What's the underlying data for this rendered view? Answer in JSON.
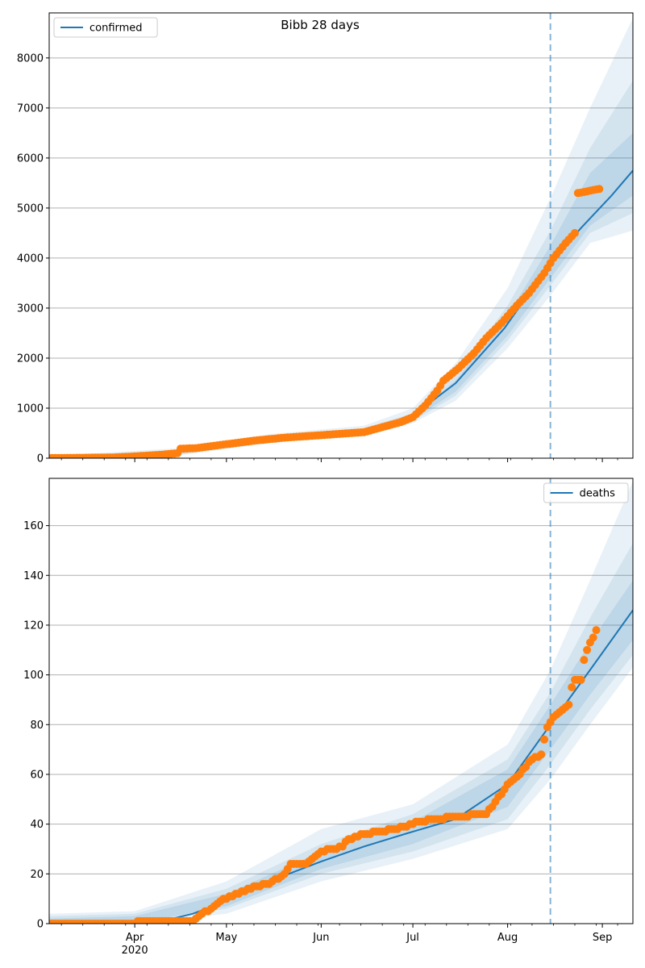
{
  "chart_data": [
    {
      "type": "line",
      "title": "Bibb 28 days",
      "legend": "top-left",
      "grid": "horizontal",
      "ylim": [
        0,
        8900
      ],
      "yticks": [
        0,
        1000,
        2000,
        3000,
        4000,
        5000,
        6000,
        7000,
        8000
      ],
      "x_range": [
        "2020-03-04",
        "2020-09-11"
      ],
      "forecast_start": "2020-08-15",
      "series": [
        {
          "name": "confirmed",
          "type": "line",
          "color": "#1f77b4",
          "points": [
            [
              "2020-03-04",
              0
            ],
            [
              "2020-03-20",
              8
            ],
            [
              "2020-04-01",
              40
            ],
            [
              "2020-04-10",
              80
            ],
            [
              "2020-04-20",
              180
            ],
            [
              "2020-05-01",
              280
            ],
            [
              "2020-05-15",
              380
            ],
            [
              "2020-06-01",
              470
            ],
            [
              "2020-06-15",
              540
            ],
            [
              "2020-06-27",
              700
            ],
            [
              "2020-07-01",
              850
            ],
            [
              "2020-07-15",
              1500
            ],
            [
              "2020-07-31",
              2600
            ],
            [
              "2020-08-15",
              3900
            ],
            [
              "2020-08-25",
              4600
            ],
            [
              "2020-09-04",
              5250
            ],
            [
              "2020-09-11",
              5750
            ]
          ]
        },
        {
          "name": "",
          "type": "scatter",
          "color": "#ff7f0e",
          "points": [
            [
              "2020-03-04",
              2
            ],
            [
              "2020-03-25",
              15
            ],
            [
              "2020-04-01",
              35
            ],
            [
              "2020-04-10",
              70
            ],
            [
              "2020-04-15",
              100
            ],
            [
              "2020-04-16",
              190
            ],
            [
              "2020-04-21",
              200
            ],
            [
              "2020-05-01",
              280
            ],
            [
              "2020-05-10",
              350
            ],
            [
              "2020-05-20",
              410
            ],
            [
              "2020-06-01",
              460
            ],
            [
              "2020-06-15",
              520
            ],
            [
              "2020-06-27",
              720
            ],
            [
              "2020-07-01",
              820
            ],
            [
              "2020-07-05",
              1050
            ],
            [
              "2020-07-09",
              1350
            ],
            [
              "2020-07-11",
              1550
            ],
            [
              "2020-07-16",
              1800
            ],
            [
              "2020-07-21",
              2100
            ],
            [
              "2020-07-25",
              2400
            ],
            [
              "2020-07-30",
              2700
            ],
            [
              "2020-08-04",
              3050
            ],
            [
              "2020-08-08",
              3300
            ],
            [
              "2020-08-13",
              3700
            ],
            [
              "2020-08-16",
              4000
            ],
            [
              "2020-08-18",
              4150
            ],
            [
              "2020-08-20",
              4300
            ],
            [
              "2020-08-23",
              4500
            ],
            [
              "2020-08-24",
              5300
            ],
            [
              "2020-08-26",
              5320
            ],
            [
              "2020-08-29",
              5360
            ],
            [
              "2020-08-31",
              5380
            ]
          ]
        }
      ],
      "bands": {
        "dates": [
          "2020-03-04",
          "2020-04-15",
          "2020-05-15",
          "2020-06-15",
          "2020-07-01",
          "2020-07-15",
          "2020-08-01",
          "2020-08-15",
          "2020-08-28",
          "2020-09-11"
        ],
        "outer_low": [
          0,
          50,
          300,
          470,
          700,
          1150,
          2200,
          3250,
          4300,
          4550
        ],
        "outer_high": [
          40,
          200,
          480,
          650,
          1000,
          1900,
          3400,
          5200,
          7000,
          8800
        ],
        "mid_low": [
          0,
          70,
          330,
          500,
          740,
          1250,
          2350,
          3450,
          4500,
          4900
        ],
        "mid_high": [
          25,
          170,
          430,
          600,
          900,
          1650,
          3050,
          4550,
          6200,
          7550
        ],
        "inner_low": [
          0,
          80,
          350,
          510,
          770,
          1330,
          2450,
          3600,
          4650,
          5250
        ],
        "inner_high": [
          15,
          150,
          410,
          580,
          850,
          1550,
          2850,
          4250,
          5700,
          6500
        ]
      }
    },
    {
      "type": "line",
      "legend": "top-right",
      "grid": "horizontal",
      "ylim": [
        0,
        179
      ],
      "yticks": [
        0,
        20,
        40,
        60,
        80,
        100,
        120,
        140,
        160
      ],
      "x_range": [
        "2020-03-04",
        "2020-09-11"
      ],
      "xticks": [
        "Apr\n2020",
        "May",
        "Jun",
        "Jul",
        "Aug",
        "Sep"
      ],
      "forecast_start": "2020-08-15",
      "series": [
        {
          "name": "deaths",
          "type": "line",
          "color": "#1f77b4",
          "points": [
            [
              "2020-03-04",
              0
            ],
            [
              "2020-03-25",
              0
            ],
            [
              "2020-04-10",
              1
            ],
            [
              "2020-04-20",
              4
            ],
            [
              "2020-05-01",
              9
            ],
            [
              "2020-05-15",
              17
            ],
            [
              "2020-06-01",
              25
            ],
            [
              "2020-06-15",
              31
            ],
            [
              "2020-07-01",
              37
            ],
            [
              "2020-07-15",
              42
            ],
            [
              "2020-08-01",
              56
            ],
            [
              "2020-08-15",
              80
            ],
            [
              "2020-08-28",
              102
            ],
            [
              "2020-09-11",
              126
            ]
          ]
        },
        {
          "name": "",
          "type": "scatter",
          "color": "#ff7f0e",
          "points": [
            [
              "2020-03-04",
              0
            ],
            [
              "2020-03-30",
              0
            ],
            [
              "2020-04-05",
              1
            ],
            [
              "2020-04-20",
              1
            ],
            [
              "2020-04-22",
              3
            ],
            [
              "2020-04-26",
              6
            ],
            [
              "2020-04-30",
              10
            ],
            [
              "2020-05-05",
              12
            ],
            [
              "2020-05-10",
              15
            ],
            [
              "2020-05-15",
              16
            ],
            [
              "2020-05-20",
              20
            ],
            [
              "2020-05-22",
              24
            ],
            [
              "2020-05-27",
              24
            ],
            [
              "2020-06-01",
              29
            ],
            [
              "2020-06-05",
              30
            ],
            [
              "2020-06-08",
              31
            ],
            [
              "2020-06-10",
              34
            ],
            [
              "2020-06-15",
              36
            ],
            [
              "2020-06-20",
              37
            ],
            [
              "2020-06-25",
              38
            ],
            [
              "2020-07-01",
              40
            ],
            [
              "2020-07-03",
              41
            ],
            [
              "2020-07-15",
              43
            ],
            [
              "2020-07-25",
              44
            ],
            [
              "2020-07-27",
              47
            ],
            [
              "2020-08-01",
              56
            ],
            [
              "2020-08-05",
              60
            ],
            [
              "2020-08-08",
              65
            ],
            [
              "2020-08-12",
              68
            ],
            [
              "2020-08-14",
              79
            ],
            [
              "2020-08-16",
              83
            ],
            [
              "2020-08-18",
              85
            ],
            [
              "2020-08-21",
              88
            ],
            [
              "2020-08-22",
              95
            ],
            [
              "2020-08-23",
              98
            ],
            [
              "2020-08-25",
              98
            ],
            [
              "2020-08-26",
              106
            ],
            [
              "2020-08-27",
              110
            ],
            [
              "2020-08-28",
              113
            ],
            [
              "2020-08-29",
              115
            ],
            [
              "2020-08-30",
              118
            ]
          ]
        }
      ],
      "bands": {
        "dates": [
          "2020-03-04",
          "2020-04-01",
          "2020-05-01",
          "2020-06-01",
          "2020-07-01",
          "2020-08-01",
          "2020-08-15",
          "2020-08-28",
          "2020-09-11"
        ],
        "outer_low": [
          0,
          0,
          4,
          17,
          26,
          38,
          58,
          80,
          103
        ],
        "outer_high": [
          4,
          5,
          17,
          38,
          48,
          72,
          102,
          138,
          178
        ],
        "mid_low": [
          0,
          0,
          6,
          20,
          29,
          42,
          64,
          86,
          108
        ],
        "mid_high": [
          3,
          4,
          14,
          32,
          44,
          66,
          93,
          123,
          153
        ],
        "inner_low": [
          0,
          0,
          7,
          22,
          32,
          47,
          70,
          92,
          114
        ],
        "inner_high": [
          2,
          3,
          12,
          29,
          41,
          62,
          88,
          113,
          138
        ]
      }
    }
  ]
}
